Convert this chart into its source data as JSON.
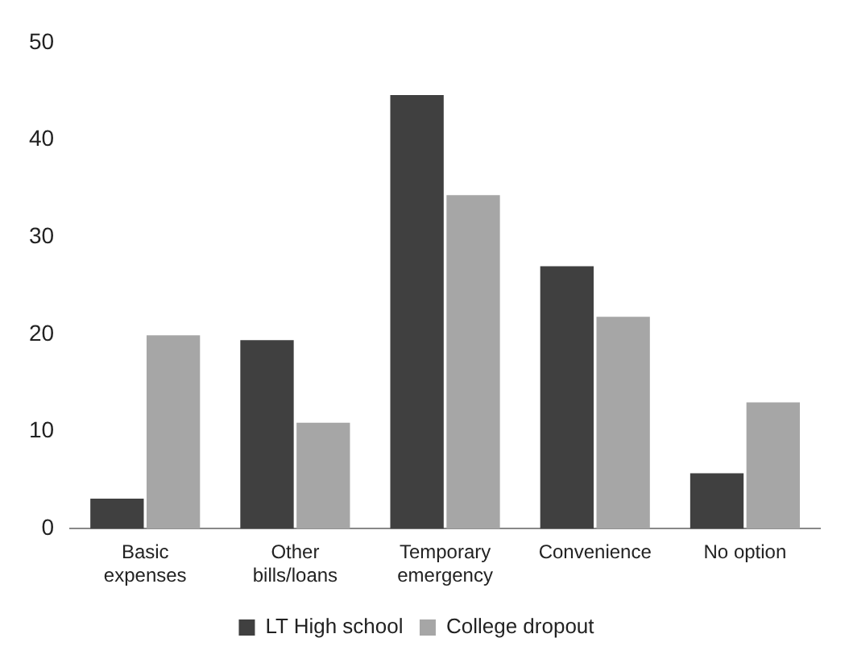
{
  "chart_data": {
    "type": "bar",
    "categories": [
      "Basic expenses",
      "Other bills/loans",
      "Temporary emergency",
      "Convenience",
      "No option"
    ],
    "series": [
      {
        "name": "LT High school",
        "color": "#404040",
        "values": [
          3.1,
          19.4,
          44.6,
          27,
          5.7
        ]
      },
      {
        "name": "College dropout",
        "color": "#a6a6a6",
        "values": [
          19.9,
          10.9,
          34.3,
          21.8,
          13
        ]
      }
    ],
    "ylim": [
      0,
      50
    ],
    "yticks": [
      0,
      10,
      20,
      30,
      40,
      50
    ],
    "grid": false,
    "legend": "bottom"
  }
}
